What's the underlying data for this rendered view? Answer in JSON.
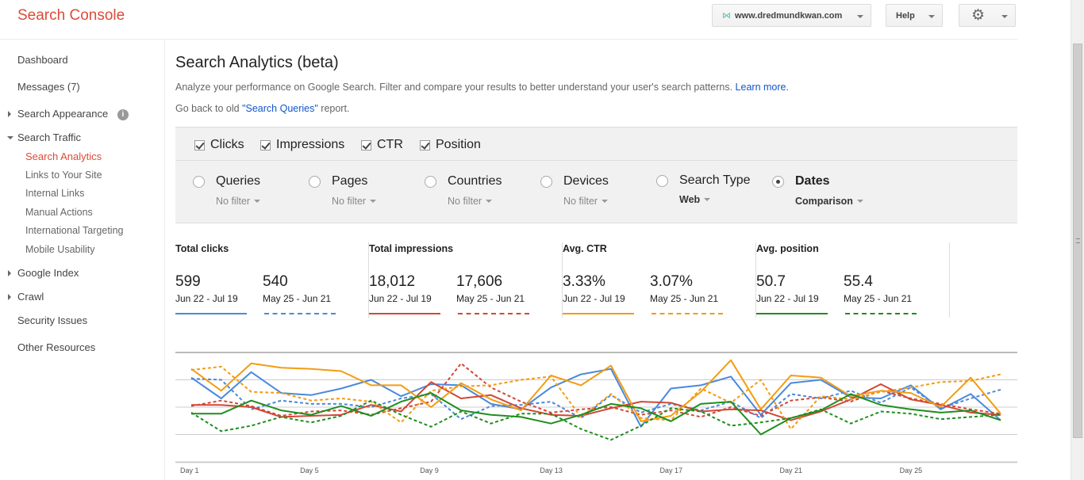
{
  "header": {
    "brand": "Search Console",
    "site": "www.dredmundkwan.com",
    "help": "Help"
  },
  "sidebar": {
    "items": [
      {
        "label": "Dashboard"
      },
      {
        "label": "Messages (7)"
      },
      {
        "label": "Search Appearance"
      },
      {
        "label": "Search Traffic"
      },
      {
        "label": "Search Analytics"
      },
      {
        "label": "Links to Your Site"
      },
      {
        "label": "Internal Links"
      },
      {
        "label": "Manual Actions"
      },
      {
        "label": "International Targeting"
      },
      {
        "label": "Mobile Usability"
      },
      {
        "label": "Google Index"
      },
      {
        "label": "Crawl"
      },
      {
        "label": "Security Issues"
      },
      {
        "label": "Other Resources"
      }
    ]
  },
  "main": {
    "title": "Search Analytics (beta)",
    "description": "Analyze your performance on Google Search. Filter and compare your results to better understand your user's search patterns.",
    "learn_more": "Learn more.",
    "back_prefix": "Go back to old ",
    "back_link": "\"Search Queries\"",
    "back_suffix": " report."
  },
  "metrics": [
    {
      "label": "Clicks",
      "checked": true
    },
    {
      "label": "Impressions",
      "checked": true
    },
    {
      "label": "CTR",
      "checked": true
    },
    {
      "label": "Position",
      "checked": true
    }
  ],
  "dimensions": [
    {
      "label": "Queries",
      "value": "No filter",
      "selected": false
    },
    {
      "label": "Pages",
      "value": "No filter",
      "selected": false
    },
    {
      "label": "Countries",
      "value": "No filter",
      "selected": false
    },
    {
      "label": "Devices",
      "value": "No filter",
      "selected": false
    },
    {
      "label": "Search Type",
      "value": "Web",
      "selected": false
    },
    {
      "label": "Dates",
      "value": "Comparison",
      "selected": true
    }
  ],
  "stats": [
    {
      "label": "Total clicks",
      "current": "599",
      "previous": "540",
      "current_range": "Jun 22 - Jul 19",
      "previous_range": "May 25 - Jun 21",
      "color": "#4a89dc"
    },
    {
      "label": "Total impressions",
      "current": "18,012",
      "previous": "17,606",
      "current_range": "Jun 22 - Jul 19",
      "previous_range": "May 25 - Jun 21",
      "color": "#d14836"
    },
    {
      "label": "Avg. CTR",
      "current": "3.33%",
      "previous": "3.07%",
      "current_range": "Jun 22 - Jul 19",
      "previous_range": "May 25 - Jun 21",
      "color": "#f39c12"
    },
    {
      "label": "Avg. position",
      "current": "50.7",
      "previous": "55.4",
      "current_range": "Jun 22 - Jul 19",
      "previous_range": "May 25 - Jun 21",
      "color": "#1e8e1e"
    }
  ],
  "chart_data": {
    "type": "line",
    "title": "",
    "xlabel": "",
    "ylabel": "",
    "x": [
      "Day 1",
      "Day 2",
      "Day 3",
      "Day 4",
      "Day 5",
      "Day 6",
      "Day 7",
      "Day 8",
      "Day 9",
      "Day 10",
      "Day 11",
      "Day 12",
      "Day 13",
      "Day 14",
      "Day 15",
      "Day 16",
      "Day 17",
      "Day 18",
      "Day 19",
      "Day 20",
      "Day 21",
      "Day 22",
      "Day 23",
      "Day 24",
      "Day 25",
      "Day 26",
      "Day 27",
      "Day 28"
    ],
    "tick_labels": [
      "Day 1",
      "Day 5",
      "Day 9",
      "Day 13",
      "Day 17",
      "Day 21",
      "Day 25"
    ],
    "ylim": [
      0,
      100
    ],
    "grid": true,
    "series": [
      {
        "name": "Clicks (Jun 22 - Jul 19)",
        "color": "#4a89dc",
        "dashed": false,
        "values": [
          77,
          58,
          82,
          63,
          61,
          67,
          75,
          60,
          71,
          70,
          53,
          48,
          68,
          80,
          85,
          32,
          67,
          70,
          78,
          43,
          72,
          75,
          59,
          58,
          70,
          48,
          62,
          38
        ]
      },
      {
        "name": "Clicks (May 25 - Jun 21)",
        "color": "#4a89dc",
        "dashed": true,
        "values": [
          76,
          75,
          48,
          56,
          53,
          53,
          50,
          58,
          62,
          39,
          51,
          52,
          55,
          40,
          61,
          45,
          53,
          47,
          55,
          40,
          62,
          58,
          65,
          54,
          68,
          49,
          58,
          66
        ]
      },
      {
        "name": "Impressions (Jun 22 - Jul 19)",
        "color": "#d14836",
        "dashed": false,
        "values": [
          52,
          52,
          50,
          41,
          42,
          43,
          52,
          46,
          73,
          58,
          61,
          49,
          43,
          42,
          49,
          55,
          54,
          46,
          48,
          47,
          38,
          46,
          57,
          71,
          57,
          52,
          45,
          43
        ]
      },
      {
        "name": "Impressions (May 25 - Jun 21)",
        "color": "#d14836",
        "dashed": true,
        "values": [
          51,
          56,
          51,
          42,
          46,
          47,
          43,
          49,
          55,
          90,
          68,
          55,
          45,
          48,
          50,
          43,
          47,
          41,
          50,
          42,
          56,
          59,
          55,
          65,
          58,
          53,
          48,
          44
        ]
      },
      {
        "name": "CTR (Jun 22 - Jul 19)",
        "color": "#f39c12",
        "dashed": false,
        "values": [
          85,
          65,
          90,
          86,
          85,
          83,
          70,
          70,
          50,
          72,
          57,
          47,
          79,
          70,
          88,
          37,
          42,
          64,
          93,
          48,
          79,
          77,
          60,
          65,
          63,
          50,
          77,
          44
        ]
      },
      {
        "name": "CTR (May 25 - Jun 21)",
        "color": "#f39c12",
        "dashed": true,
        "values": [
          84,
          87,
          64,
          63,
          56,
          58,
          55,
          36,
          65,
          69,
          70,
          75,
          78,
          41,
          62,
          40,
          38,
          67,
          54,
          75,
          30,
          60,
          57,
          64,
          68,
          73,
          74,
          80
        ]
      },
      {
        "name": "Position (Jun 22 - Jul 19)",
        "color": "#1e8e1e",
        "dashed": false,
        "values": [
          44,
          44,
          56,
          47,
          43,
          51,
          42,
          55,
          63,
          47,
          43,
          41,
          35,
          43,
          53,
          49,
          37,
          53,
          55,
          25,
          40,
          47,
          62,
          52,
          48,
          45,
          47,
          38
        ]
      },
      {
        "name": "Position (May 25 - Jun 21)",
        "color": "#1e8e1e",
        "dashed": true,
        "values": [
          45,
          28,
          33,
          41,
          36,
          42,
          56,
          43,
          32,
          46,
          35,
          44,
          44,
          30,
          20,
          33,
          49,
          46,
          33,
          36,
          40,
          48,
          35,
          46,
          44,
          39,
          41,
          43
        ]
      }
    ]
  }
}
